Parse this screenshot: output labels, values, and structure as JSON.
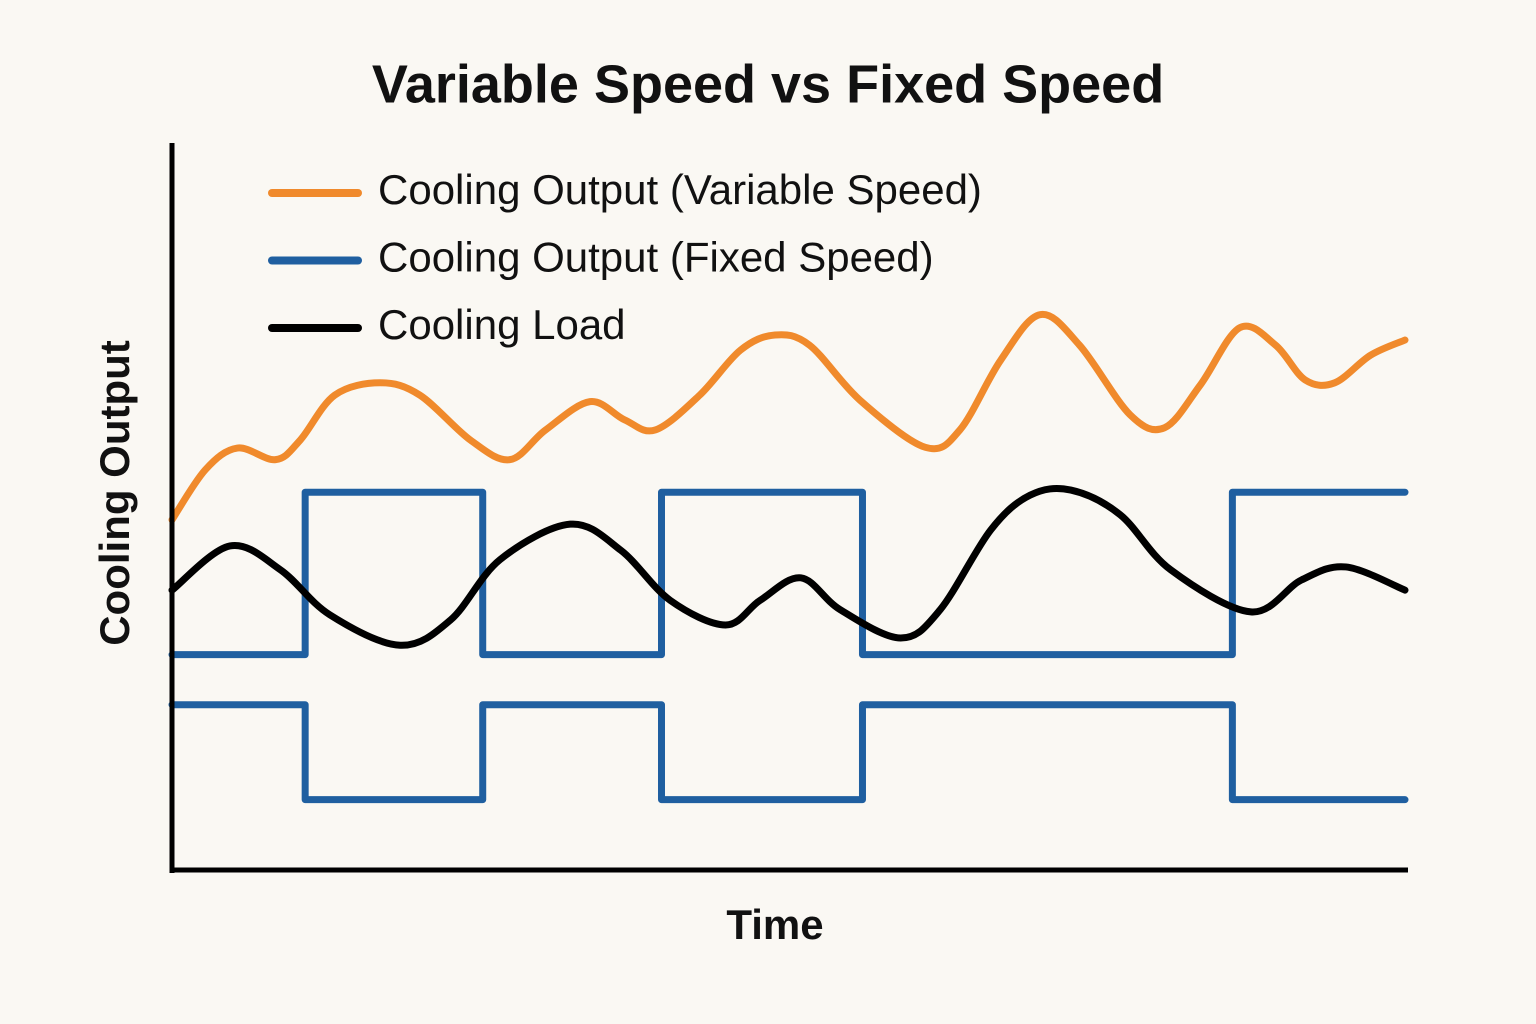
{
  "chart_data": {
    "type": "line",
    "title": "Variable Speed vs Fixed Speed",
    "xlabel": "Time",
    "ylabel": "Cooling Output",
    "xlim": [
      0,
      100
    ],
    "ylim": [
      0,
      100
    ],
    "series": [
      {
        "name": "Cooling Output (Variable Speed)",
        "color": "#f08a2c",
        "curve": "smooth",
        "x": [
          0,
          2.7,
          5.3,
          8.4,
          10.4,
          13.2,
          16.9,
          20.1,
          24.2,
          27.4,
          30.3,
          33.9,
          36.7,
          39.2,
          42.8,
          46.1,
          48.9,
          51.7,
          55.8,
          61.1,
          63.9,
          67.2,
          70.4,
          73.6,
          77.7,
          80.5,
          83.4,
          86.6,
          89.5,
          91.9,
          94.3,
          97.2,
          100
        ],
        "values": [
          48.3,
          55.2,
          58.2,
          56.6,
          59.3,
          65.5,
          67.2,
          65.5,
          59.3,
          56.6,
          60.7,
          64.6,
          62.1,
          60.7,
          65.5,
          71.7,
          73.8,
          72.4,
          64.8,
          58.3,
          60.7,
          70.3,
          76.6,
          72.4,
          62.8,
          61.0,
          66.9,
          74.8,
          72.4,
          67.6,
          67.2,
          71.0,
          73.1
        ]
      },
      {
        "name": "Cooling Output (Fixed Speed)",
        "color": "#1f5fa0",
        "curve": "step",
        "x": [
          0,
          10.8,
          25.2,
          39.7,
          56.0,
          86.0,
          100
        ],
        "values": [
          29.7,
          52.1,
          29.7,
          52.1,
          29.7,
          52.1,
          52.1
        ]
      },
      {
        "name": "Cooling Load",
        "color": "#000000",
        "curve": "smooth",
        "x": [
          0,
          4.7,
          8.8,
          12.8,
          18.5,
          22.6,
          26.6,
          32.3,
          36.4,
          40.4,
          44.9,
          47.7,
          51.0,
          54.2,
          59.1,
          62.3,
          66.4,
          69.6,
          72.9,
          76.9,
          81.0,
          87.5,
          91.6,
          95.2,
          100
        ],
        "values": [
          38.6,
          44.7,
          41.4,
          35.2,
          31.0,
          34.5,
          42.8,
          47.7,
          44.1,
          37.2,
          33.8,
          37.2,
          40.3,
          35.9,
          32.0,
          35.9,
          46.9,
          51.7,
          52.4,
          49.0,
          41.4,
          35.6,
          40.0,
          41.8,
          38.6
        ]
      },
      {
        "color": "#1f5fa0",
        "curve": "step",
        "x": [
          0,
          10.8,
          25.2,
          39.7,
          56.0,
          86.0,
          100
        ],
        "values": [
          22.8,
          9.7,
          22.8,
          9.7,
          22.8,
          9.7,
          9.7
        ]
      }
    ]
  }
}
